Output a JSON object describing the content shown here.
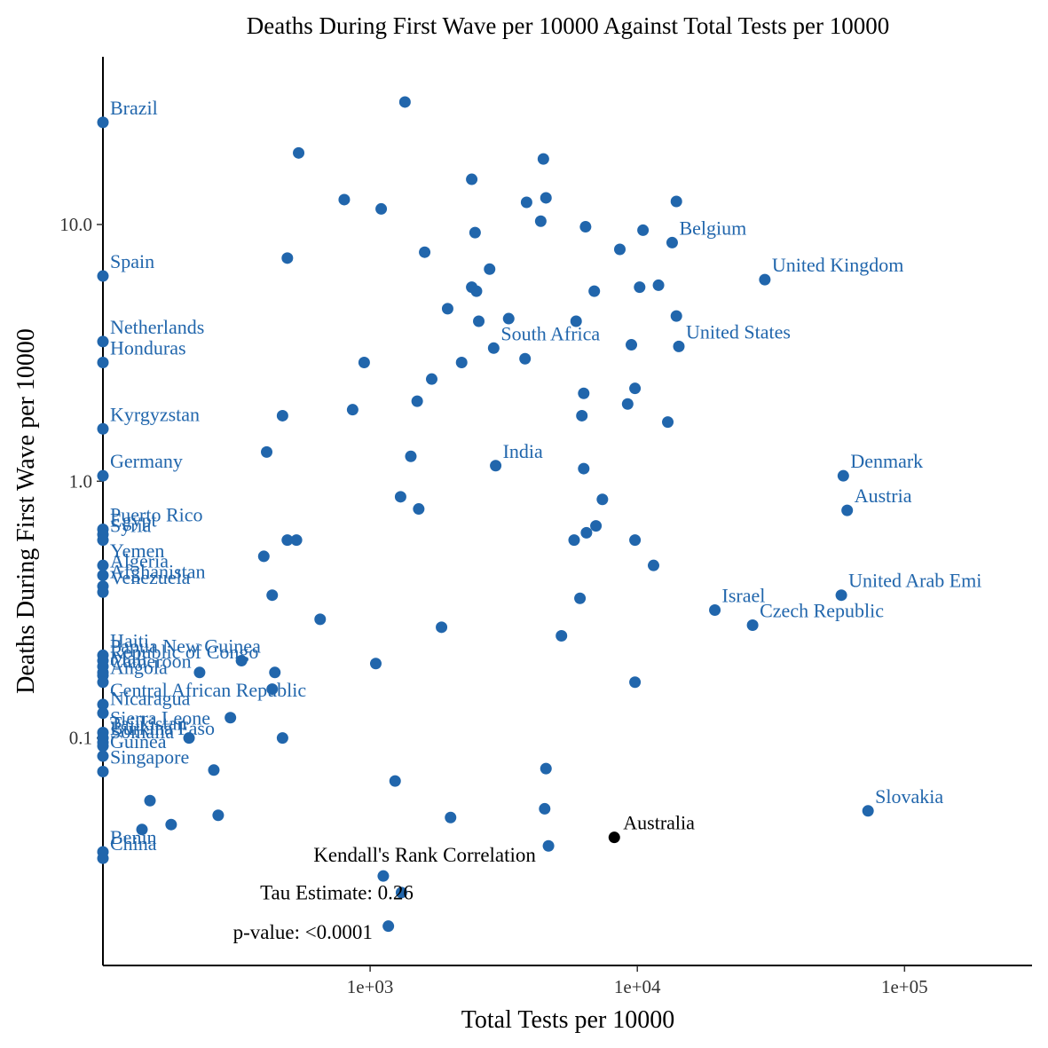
{
  "chart_data": {
    "type": "scatter",
    "title": "Deaths During First Wave per 10000 Against Total Tests per 10000",
    "xlabel": "Total Tests per 10000",
    "ylabel": "Deaths During First Wave per 10000",
    "x_scale": "log10",
    "y_scale": "log10",
    "xlim": [
      100,
      300000
    ],
    "ylim": [
      0.013,
      45
    ],
    "x_ticks": [
      {
        "value": 1000,
        "label": "1e+03"
      },
      {
        "value": 10000,
        "label": "1e+04"
      },
      {
        "value": 100000,
        "label": "1e+05"
      }
    ],
    "y_ticks": [
      {
        "value": 0.1,
        "label": "0.1"
      },
      {
        "value": 1,
        "label": "1.0"
      },
      {
        "value": 10,
        "label": "10.0"
      }
    ],
    "grid": false,
    "colors": {
      "countries": "#2166ac",
      "highlight": "#000000",
      "axis": "#000000"
    },
    "labeled_points": [
      {
        "label": "Brazil",
        "x": 100,
        "y": 25.0
      },
      {
        "label": "Spain",
        "x": 100,
        "y": 6.3
      },
      {
        "label": "Netherlands",
        "x": 100,
        "y": 3.5
      },
      {
        "label": "Honduras",
        "x": 100,
        "y": 2.9
      },
      {
        "label": "Kyrgyzstan",
        "x": 100,
        "y": 1.6
      },
      {
        "label": "Germany",
        "x": 100,
        "y": 1.05
      },
      {
        "label": "Puerto Rico",
        "x": 100,
        "y": 0.65
      },
      {
        "label": "Egypt",
        "x": 100,
        "y": 0.62
      },
      {
        "label": "Syria",
        "x": 100,
        "y": 0.59
      },
      {
        "label": "Yemen",
        "x": 100,
        "y": 0.47
      },
      {
        "label": "Algeria",
        "x": 100,
        "y": 0.43
      },
      {
        "label": "Afghanistan",
        "x": 100,
        "y": 0.39
      },
      {
        "label": "Venezuela",
        "x": 100,
        "y": 0.37
      },
      {
        "label": "Haiti",
        "x": 100,
        "y": 0.21
      },
      {
        "label": "Papua New Guinea",
        "x": 100,
        "y": 0.2
      },
      {
        "label": "Republic of Congo",
        "x": 100,
        "y": 0.19
      },
      {
        "label": "Mali",
        "x": 100,
        "y": 0.18
      },
      {
        "label": "Cameroon",
        "x": 100,
        "y": 0.175
      },
      {
        "label": "Angola",
        "x": 100,
        "y": 0.165
      },
      {
        "label": "Central African Republic",
        "x": 100,
        "y": 0.135
      },
      {
        "label": "Nicaragua",
        "x": 100,
        "y": 0.125
      },
      {
        "label": "Sierra Leone",
        "x": 100,
        "y": 0.105
      },
      {
        "label": "Tajikistan",
        "x": 100,
        "y": 0.1
      },
      {
        "label": "Burkina Faso",
        "x": 100,
        "y": 0.096
      },
      {
        "label": "Somalia",
        "x": 100,
        "y": 0.093
      },
      {
        "label": "Guinea",
        "x": 100,
        "y": 0.085
      },
      {
        "label": "Singapore",
        "x": 100,
        "y": 0.074
      },
      {
        "label": "Benin",
        "x": 100,
        "y": 0.036
      },
      {
        "label": "China",
        "x": 100,
        "y": 0.034
      },
      {
        "label": "South Africa",
        "x": 2900,
        "y": 3.3
      },
      {
        "label": "India",
        "x": 2950,
        "y": 1.15
      },
      {
        "label": "Belgium",
        "x": 13500,
        "y": 8.5
      },
      {
        "label": "United States",
        "x": 14300,
        "y": 3.35
      },
      {
        "label": "United Kingdom",
        "x": 30000,
        "y": 6.1
      },
      {
        "label": "Denmark",
        "x": 59000,
        "y": 1.05
      },
      {
        "label": "Austria",
        "x": 61000,
        "y": 0.77
      },
      {
        "label": "United Arab Emi",
        "x": 58000,
        "y": 0.36
      },
      {
        "label": "Israel",
        "x": 19500,
        "y": 0.315
      },
      {
        "label": "Czech Republic",
        "x": 27000,
        "y": 0.275
      },
      {
        "label": "Slovakia",
        "x": 73000,
        "y": 0.052
      }
    ],
    "highlight_point": {
      "label": "Australia",
      "x": 8200,
      "y": 0.041
    },
    "unlabeled_points": [
      [
        1350,
        30.0
      ],
      [
        540,
        19.0
      ],
      [
        4450,
        18.0
      ],
      [
        2400,
        15.0
      ],
      [
        800,
        12.5
      ],
      [
        1100,
        11.5
      ],
      [
        3850,
        12.2
      ],
      [
        4550,
        12.7
      ],
      [
        14000,
        12.3
      ],
      [
        4350,
        10.3
      ],
      [
        6400,
        9.8
      ],
      [
        2470,
        9.3
      ],
      [
        10500,
        9.5
      ],
      [
        490,
        7.4
      ],
      [
        1600,
        7.8
      ],
      [
        8600,
        8.0
      ],
      [
        2800,
        6.7
      ],
      [
        2400,
        5.7
      ],
      [
        2500,
        5.5
      ],
      [
        6900,
        5.5
      ],
      [
        10200,
        5.7
      ],
      [
        12000,
        5.8
      ],
      [
        1950,
        4.7
      ],
      [
        2550,
        4.2
      ],
      [
        3300,
        4.3
      ],
      [
        5900,
        4.2
      ],
      [
        14000,
        4.4
      ],
      [
        9500,
        3.4
      ],
      [
        950,
        2.9
      ],
      [
        2200,
        2.9
      ],
      [
        3800,
        3.0
      ],
      [
        1700,
        2.5
      ],
      [
        6300,
        2.2
      ],
      [
        9800,
        2.3
      ],
      [
        1500,
        2.05
      ],
      [
        9200,
        2.0
      ],
      [
        860,
        1.9
      ],
      [
        470,
        1.8
      ],
      [
        6200,
        1.8
      ],
      [
        13000,
        1.7
      ],
      [
        410,
        1.3
      ],
      [
        1420,
        1.25
      ],
      [
        6300,
        1.12
      ],
      [
        1300,
        0.87
      ],
      [
        7400,
        0.85
      ],
      [
        1520,
        0.78
      ],
      [
        7000,
        0.67
      ],
      [
        6450,
        0.63
      ],
      [
        490,
        0.59
      ],
      [
        530,
        0.59
      ],
      [
        5800,
        0.59
      ],
      [
        9800,
        0.59
      ],
      [
        400,
        0.51
      ],
      [
        11500,
        0.47
      ],
      [
        430,
        0.36
      ],
      [
        6100,
        0.35
      ],
      [
        650,
        0.29
      ],
      [
        1850,
        0.27
      ],
      [
        5200,
        0.25
      ],
      [
        1050,
        0.195
      ],
      [
        330,
        0.2
      ],
      [
        230,
        0.18
      ],
      [
        440,
        0.18
      ],
      [
        430,
        0.155
      ],
      [
        9800,
        0.165
      ],
      [
        300,
        0.12
      ],
      [
        210,
        0.1
      ],
      [
        470,
        0.1
      ],
      [
        260,
        0.075
      ],
      [
        4550,
        0.076
      ],
      [
        1240,
        0.068
      ],
      [
        150,
        0.057
      ],
      [
        4500,
        0.053
      ],
      [
        270,
        0.05
      ],
      [
        2000,
        0.049
      ],
      [
        180,
        0.046
      ],
      [
        140,
        0.044
      ],
      [
        4650,
        0.038
      ],
      [
        1120,
        0.029
      ],
      [
        1310,
        0.025
      ],
      [
        1170,
        0.0185
      ]
    ],
    "annotations": [
      {
        "text": "Kendall's Rank Correlation",
        "x": 1600,
        "y": 0.033
      },
      {
        "text": "Tau Estimate: 0.26",
        "x": 750,
        "y": 0.0235
      },
      {
        "text": "p-value: <0.0001",
        "x": 560,
        "y": 0.0165
      }
    ]
  }
}
